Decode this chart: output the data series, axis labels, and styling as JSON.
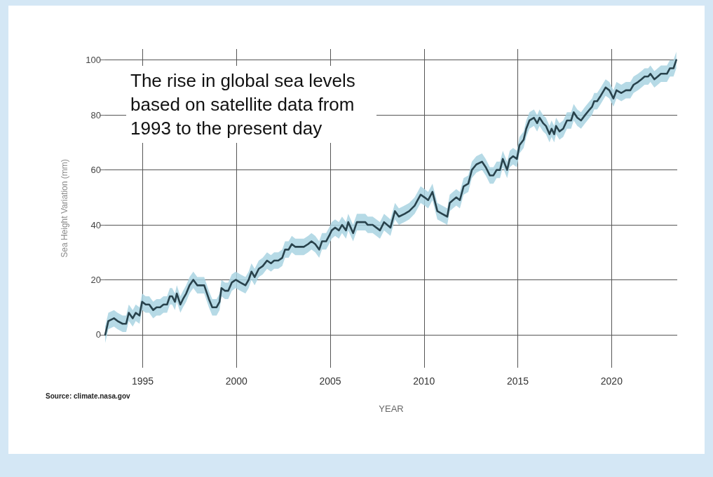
{
  "chart_data": {
    "type": "line",
    "title": "The rise in global sea levels based on satellite data from 1993 to the present day",
    "xlabel": "YEAR",
    "ylabel": "Sea Height Variation (mm)",
    "annotations": [
      "Source: climate.nasa.gov"
    ],
    "x": [
      1993.0,
      1993.07,
      1993.17,
      1993.47,
      1993.66,
      1993.93,
      1994.12,
      1994.26,
      1994.47,
      1994.63,
      1994.83,
      1994.97,
      1995.16,
      1995.35,
      1995.56,
      1995.74,
      1995.93,
      1996.11,
      1996.3,
      1996.45,
      1996.57,
      1996.72,
      1996.82,
      1997.01,
      1997.15,
      1997.32,
      1997.5,
      1997.7,
      1997.91,
      1998.1,
      1998.28,
      1998.53,
      1998.71,
      1998.94,
      1999.1,
      1999.2,
      1999.39,
      1999.56,
      1999.75,
      1999.96,
      2000.21,
      2000.48,
      2000.65,
      2000.8,
      2000.97,
      2001.19,
      2001.4,
      2001.63,
      2001.84,
      2002.01,
      2002.23,
      2002.44,
      2002.59,
      2002.78,
      2002.95,
      2003.14,
      2003.33,
      2003.59,
      2003.82,
      2004.0,
      2004.2,
      2004.41,
      2004.56,
      2004.78,
      2004.94,
      2005.08,
      2005.26,
      2005.46,
      2005.63,
      2005.84,
      2005.96,
      2006.22,
      2006.42,
      2006.64,
      2006.87,
      2007.0,
      2007.26,
      2007.65,
      2007.87,
      2008.21,
      2008.45,
      2008.66,
      2008.96,
      2009.21,
      2009.5,
      2009.66,
      2009.82,
      2010.03,
      2010.22,
      2010.45,
      2010.71,
      2010.97,
      2011.24,
      2011.37,
      2011.54,
      2011.72,
      2011.91,
      2012.11,
      2012.36,
      2012.55,
      2012.79,
      2013.09,
      2013.29,
      2013.51,
      2013.7,
      2013.87,
      2014.05,
      2014.2,
      2014.43,
      2014.57,
      2014.75,
      2014.95,
      2015.09,
      2015.31,
      2015.45,
      2015.62,
      2015.86,
      2016.03,
      2016.16,
      2016.35,
      2016.5,
      2016.69,
      2016.8,
      2016.94,
      2017.04,
      2017.22,
      2017.42,
      2017.62,
      2017.84,
      2017.98,
      2018.17,
      2018.37,
      2018.59,
      2018.83,
      2018.96,
      2019.07,
      2019.23,
      2019.42,
      2019.68,
      2019.88,
      2020.1,
      2020.26,
      2020.52,
      2020.76,
      2021.0,
      2021.17,
      2021.41,
      2021.59,
      2021.76,
      2021.95,
      2022.07,
      2022.28,
      2022.46,
      2022.63,
      2022.81,
      2022.95,
      2023.11,
      2023.3,
      2023.45
    ],
    "series": [
      {
        "color": "#28424c",
        "values": [
          0,
          2,
          5,
          6,
          5,
          4,
          4,
          8,
          6,
          8,
          7,
          12,
          11,
          11,
          9,
          10,
          10,
          11,
          11,
          14,
          14,
          12,
          15,
          11,
          13,
          15,
          18,
          20,
          18,
          18,
          18,
          13,
          10,
          10,
          12,
          17,
          16,
          16,
          19,
          20,
          19,
          18,
          20,
          23,
          21,
          24,
          25,
          27,
          26,
          27,
          27,
          28,
          31,
          31,
          33,
          32,
          32,
          32,
          33,
          34,
          33,
          31,
          34,
          34,
          36,
          38,
          39,
          38,
          40,
          38,
          41,
          37,
          41,
          41,
          41,
          40,
          40,
          38,
          41,
          39,
          45,
          43,
          44,
          45,
          47,
          49,
          51,
          50,
          49,
          52,
          45,
          44,
          43,
          48,
          49,
          50,
          49,
          54,
          55,
          60,
          62,
          63,
          61,
          58,
          58,
          60,
          60,
          64,
          60,
          64,
          65,
          64,
          69,
          71,
          75,
          78,
          79,
          77,
          79,
          77,
          76,
          73,
          75,
          73,
          76,
          74,
          75,
          78,
          78,
          81,
          79,
          78,
          80,
          82,
          83,
          85,
          85,
          87,
          90,
          89,
          86,
          89,
          88,
          89,
          89,
          91,
          92,
          93,
          94,
          94,
          95,
          93,
          94,
          95,
          95,
          95,
          97,
          97,
          100
        ],
        "lower": [
          -3,
          -1,
          2,
          3,
          2,
          1,
          1,
          5,
          3,
          5,
          4,
          9,
          8,
          8,
          6,
          7,
          7,
          8,
          8,
          11,
          11,
          9,
          12,
          8,
          10,
          12,
          15,
          17,
          15,
          15,
          15,
          10,
          7,
          7,
          9,
          14,
          13,
          13,
          16,
          17,
          16,
          15,
          17,
          20,
          18,
          21,
          22,
          24,
          23,
          24,
          24,
          25,
          28,
          28,
          30,
          29,
          29,
          29,
          30,
          31,
          30,
          28,
          31,
          31,
          33,
          35,
          36,
          35,
          37,
          35,
          38,
          34,
          38,
          38,
          38,
          37,
          37,
          35,
          38,
          36,
          42,
          40,
          41,
          42,
          44,
          46,
          48,
          47,
          46,
          49,
          42,
          41,
          40,
          45,
          46,
          47,
          46,
          51,
          52,
          57,
          59,
          60,
          58,
          55,
          55,
          57,
          57,
          61,
          57,
          61,
          62,
          61,
          66,
          68,
          72,
          75,
          76,
          74,
          76,
          74,
          73,
          70,
          72,
          70,
          73,
          71,
          72,
          75,
          75,
          78,
          76,
          75,
          77,
          79,
          80,
          82,
          82,
          84,
          87,
          86,
          83,
          86,
          85,
          86,
          86,
          88,
          89,
          90,
          91,
          91,
          92,
          90,
          91,
          92,
          92,
          92,
          94,
          94,
          97
        ],
        "upper": [
          3,
          5,
          8,
          9,
          8,
          7,
          7,
          11,
          9,
          11,
          10,
          15,
          14,
          14,
          12,
          13,
          13,
          14,
          14,
          17,
          17,
          15,
          18,
          14,
          16,
          18,
          21,
          23,
          21,
          21,
          21,
          16,
          13,
          13,
          15,
          20,
          19,
          19,
          22,
          23,
          22,
          21,
          23,
          26,
          24,
          27,
          28,
          30,
          29,
          30,
          30,
          31,
          34,
          34,
          36,
          35,
          35,
          35,
          36,
          37,
          36,
          34,
          37,
          37,
          39,
          41,
          42,
          41,
          43,
          41,
          44,
          40,
          44,
          44,
          44,
          43,
          43,
          41,
          44,
          42,
          48,
          46,
          47,
          48,
          50,
          52,
          54,
          53,
          52,
          55,
          48,
          47,
          46,
          51,
          52,
          53,
          52,
          57,
          58,
          63,
          65,
          66,
          64,
          61,
          61,
          63,
          63,
          67,
          63,
          67,
          68,
          67,
          72,
          74,
          78,
          81,
          82,
          80,
          82,
          80,
          79,
          76,
          78,
          76,
          79,
          77,
          78,
          81,
          81,
          84,
          82,
          81,
          83,
          85,
          86,
          88,
          88,
          90,
          93,
          92,
          89,
          92,
          91,
          92,
          92,
          94,
          95,
          96,
          97,
          97,
          98,
          96,
          97,
          98,
          98,
          98,
          100,
          100,
          103
        ]
      }
    ],
    "xlim": [
      1993,
      2023.5
    ],
    "xticks": [
      1995,
      2000,
      2005,
      2010,
      2015,
      2020
    ],
    "ylim": [
      -12,
      104
    ],
    "yticks": [
      0,
      20,
      40,
      60,
      80,
      100
    ],
    "grid": true,
    "marker": "none",
    "line_style": "solid"
  }
}
